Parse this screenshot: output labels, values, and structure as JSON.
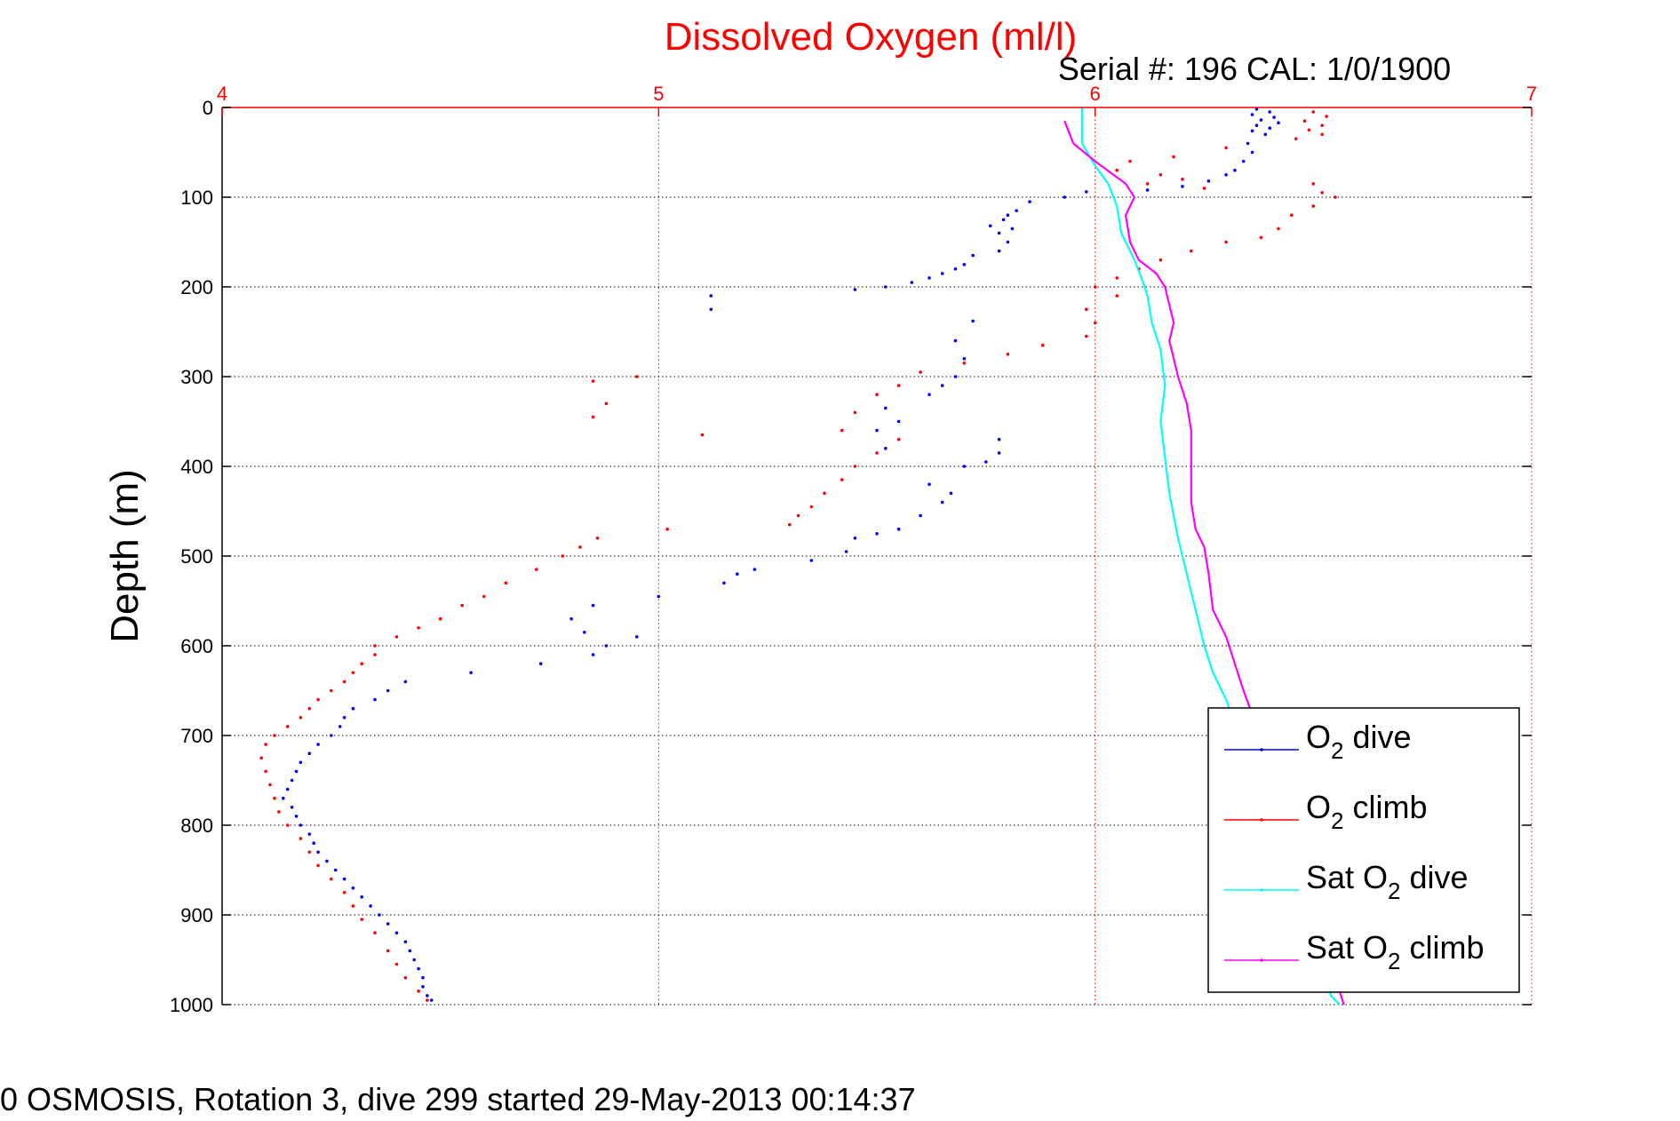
{
  "chart_data": {
    "type": "scatter",
    "title": "Dissolved Oxygen (ml/l)",
    "subtitle": "Serial #: 196  CAL: 1/0/1900",
    "xlabel": "",
    "ylabel": "Depth (m)",
    "xlim": [
      4,
      7
    ],
    "ylim": [
      0,
      1000
    ],
    "y_reversed": true,
    "x_ticks": [
      "4",
      "5",
      "6",
      "7"
    ],
    "y_ticks": [
      "0",
      "100",
      "200",
      "300",
      "400",
      "500",
      "600",
      "700",
      "800",
      "900",
      "1000"
    ],
    "x_tick_values": [
      4,
      5,
      6,
      7
    ],
    "y_tick_values": [
      0,
      100,
      200,
      300,
      400,
      500,
      600,
      700,
      800,
      900,
      1000
    ],
    "grid": true,
    "legend_position": "lower-right",
    "footer": "0 OSMOSIS, Rotation 3, dive 299 started 29-May-2013 00:14:37",
    "colors": {
      "title": "#ff0000",
      "x_axis": "#ff0000",
      "y_axis": "#000000",
      "grid": "#000000"
    },
    "series": [
      {
        "id": "o2_dive",
        "legend_prefix": "O",
        "legend_sub": "2",
        "legend_suffix": " dive",
        "color": "#0000ff",
        "style": "dots",
        "points": [
          [
            6.37,
            2
          ],
          [
            6.4,
            5
          ],
          [
            6.36,
            8
          ],
          [
            6.41,
            11
          ],
          [
            6.38,
            14
          ],
          [
            6.42,
            17
          ],
          [
            6.37,
            20
          ],
          [
            6.4,
            23
          ],
          [
            6.36,
            26
          ],
          [
            6.39,
            30
          ],
          [
            6.35,
            40
          ],
          [
            6.36,
            50
          ],
          [
            6.34,
            60
          ],
          [
            6.32,
            70
          ],
          [
            6.3,
            75
          ],
          [
            6.26,
            82
          ],
          [
            6.2,
            88
          ],
          [
            6.12,
            92
          ],
          [
            5.98,
            94
          ],
          [
            5.93,
            100
          ],
          [
            5.85,
            105
          ],
          [
            5.82,
            115
          ],
          [
            5.8,
            120
          ],
          [
            5.79,
            125
          ],
          [
            5.76,
            132
          ],
          [
            5.81,
            135
          ],
          [
            5.78,
            140
          ],
          [
            5.8,
            150
          ],
          [
            5.78,
            160
          ],
          [
            5.72,
            165
          ],
          [
            5.7,
            175
          ],
          [
            5.68,
            180
          ],
          [
            5.65,
            185
          ],
          [
            5.62,
            190
          ],
          [
            5.58,
            195
          ],
          [
            5.52,
            200
          ],
          [
            5.45,
            203
          ],
          [
            5.12,
            210
          ],
          [
            5.12,
            225
          ],
          [
            5.72,
            238
          ],
          [
            5.68,
            260
          ],
          [
            5.7,
            280
          ],
          [
            5.68,
            300
          ],
          [
            5.65,
            310
          ],
          [
            5.62,
            320
          ],
          [
            5.52,
            335
          ],
          [
            5.55,
            350
          ],
          [
            5.5,
            360
          ],
          [
            5.52,
            380
          ],
          [
            5.78,
            370
          ],
          [
            5.78,
            385
          ],
          [
            5.75,
            395
          ],
          [
            5.7,
            400
          ],
          [
            5.62,
            420
          ],
          [
            5.67,
            430
          ],
          [
            5.65,
            440
          ],
          [
            5.6,
            455
          ],
          [
            5.55,
            470
          ],
          [
            5.5,
            475
          ],
          [
            5.45,
            480
          ],
          [
            5.43,
            495
          ],
          [
            5.35,
            505
          ],
          [
            5.22,
            515
          ],
          [
            5.18,
            520
          ],
          [
            5.15,
            530
          ],
          [
            5.0,
            545
          ],
          [
            4.85,
            555
          ],
          [
            4.8,
            570
          ],
          [
            4.83,
            585
          ],
          [
            4.95,
            590
          ],
          [
            4.88,
            600
          ],
          [
            4.85,
            610
          ],
          [
            4.73,
            620
          ],
          [
            4.57,
            630
          ],
          [
            4.42,
            640
          ],
          [
            4.38,
            650
          ],
          [
            4.35,
            660
          ],
          [
            4.3,
            670
          ],
          [
            4.28,
            680
          ],
          [
            4.27,
            690
          ],
          [
            4.25,
            700
          ],
          [
            4.22,
            710
          ],
          [
            4.2,
            720
          ],
          [
            4.18,
            730
          ],
          [
            4.17,
            740
          ],
          [
            4.16,
            750
          ],
          [
            4.15,
            760
          ],
          [
            4.14,
            770
          ],
          [
            4.16,
            780
          ],
          [
            4.17,
            790
          ],
          [
            4.18,
            800
          ],
          [
            4.2,
            810
          ],
          [
            4.21,
            820
          ],
          [
            4.22,
            830
          ],
          [
            4.24,
            840
          ],
          [
            4.26,
            850
          ],
          [
            4.28,
            860
          ],
          [
            4.3,
            870
          ],
          [
            4.32,
            880
          ],
          [
            4.34,
            890
          ],
          [
            4.36,
            900
          ],
          [
            4.38,
            910
          ],
          [
            4.4,
            920
          ],
          [
            4.42,
            930
          ],
          [
            4.43,
            940
          ],
          [
            4.44,
            950
          ],
          [
            4.45,
            960
          ],
          [
            4.46,
            970
          ],
          [
            4.46,
            980
          ],
          [
            4.47,
            990
          ],
          [
            4.48,
            995
          ]
        ]
      },
      {
        "id": "o2_climb",
        "legend_prefix": "O",
        "legend_sub": "2",
        "legend_suffix": " climb",
        "color": "#ff0000",
        "style": "dots",
        "points": [
          [
            6.5,
            5
          ],
          [
            6.53,
            10
          ],
          [
            6.48,
            15
          ],
          [
            6.52,
            20
          ],
          [
            6.49,
            25
          ],
          [
            6.52,
            30
          ],
          [
            6.46,
            35
          ],
          [
            6.3,
            45
          ],
          [
            6.18,
            55
          ],
          [
            6.08,
            60
          ],
          [
            6.05,
            70
          ],
          [
            6.15,
            75
          ],
          [
            6.2,
            80
          ],
          [
            6.12,
            85
          ],
          [
            6.25,
            90
          ],
          [
            6.5,
            85
          ],
          [
            6.52,
            95
          ],
          [
            6.55,
            100
          ],
          [
            6.5,
            110
          ],
          [
            6.45,
            120
          ],
          [
            6.42,
            135
          ],
          [
            6.38,
            145
          ],
          [
            6.3,
            150
          ],
          [
            6.22,
            160
          ],
          [
            6.15,
            170
          ],
          [
            6.1,
            180
          ],
          [
            6.05,
            190
          ],
          [
            6.0,
            200
          ],
          [
            6.05,
            210
          ],
          [
            5.98,
            225
          ],
          [
            6.0,
            240
          ],
          [
            5.98,
            255
          ],
          [
            5.88,
            265
          ],
          [
            5.8,
            275
          ],
          [
            5.7,
            285
          ],
          [
            5.6,
            295
          ],
          [
            5.55,
            310
          ],
          [
            5.5,
            320
          ],
          [
            5.45,
            340
          ],
          [
            5.42,
            360
          ],
          [
            5.55,
            370
          ],
          [
            5.5,
            385
          ],
          [
            5.45,
            400
          ],
          [
            5.42,
            415
          ],
          [
            5.38,
            430
          ],
          [
            5.35,
            445
          ],
          [
            5.32,
            455
          ],
          [
            5.3,
            465
          ],
          [
            5.02,
            470
          ],
          [
            4.86,
            480
          ],
          [
            4.82,
            490
          ],
          [
            4.78,
            500
          ],
          [
            4.72,
            515
          ],
          [
            4.65,
            530
          ],
          [
            4.6,
            545
          ],
          [
            4.55,
            555
          ],
          [
            4.5,
            570
          ],
          [
            4.45,
            580
          ],
          [
            4.4,
            590
          ],
          [
            4.35,
            600
          ],
          [
            4.35,
            610
          ],
          [
            4.32,
            620
          ],
          [
            4.3,
            630
          ],
          [
            4.28,
            640
          ],
          [
            4.25,
            650
          ],
          [
            4.22,
            660
          ],
          [
            4.2,
            670
          ],
          [
            4.18,
            680
          ],
          [
            4.15,
            690
          ],
          [
            4.12,
            700
          ],
          [
            4.1,
            710
          ],
          [
            4.09,
            725
          ],
          [
            4.1,
            740
          ],
          [
            4.11,
            755
          ],
          [
            4.12,
            770
          ],
          [
            4.13,
            785
          ],
          [
            4.15,
            800
          ],
          [
            4.18,
            815
          ],
          [
            4.2,
            830
          ],
          [
            4.22,
            845
          ],
          [
            4.25,
            860
          ],
          [
            4.28,
            875
          ],
          [
            4.3,
            890
          ],
          [
            4.32,
            905
          ],
          [
            4.35,
            920
          ],
          [
            4.38,
            940
          ],
          [
            4.4,
            955
          ],
          [
            4.42,
            970
          ],
          [
            4.45,
            985
          ],
          [
            4.47,
            995
          ],
          [
            5.1,
            365
          ],
          [
            4.85,
            305
          ],
          [
            4.95,
            300
          ],
          [
            4.88,
            330
          ],
          [
            4.85,
            345
          ]
        ]
      },
      {
        "id": "sat_o2_dive",
        "legend_prefix": "Sat O",
        "legend_sub": "2",
        "legend_suffix": " dive",
        "color": "#00ffff",
        "style": "line",
        "points": [
          [
            5.97,
            0
          ],
          [
            5.97,
            40
          ],
          [
            6.0,
            65
          ],
          [
            6.03,
            85
          ],
          [
            6.05,
            110
          ],
          [
            6.06,
            140
          ],
          [
            6.09,
            170
          ],
          [
            6.11,
            195
          ],
          [
            6.12,
            210
          ],
          [
            6.13,
            240
          ],
          [
            6.15,
            270
          ],
          [
            6.16,
            310
          ],
          [
            6.15,
            350
          ],
          [
            6.16,
            390
          ],
          [
            6.17,
            430
          ],
          [
            6.19,
            480
          ],
          [
            6.21,
            520
          ],
          [
            6.23,
            560
          ],
          [
            6.25,
            600
          ],
          [
            6.27,
            630
          ],
          [
            6.3,
            660
          ],
          [
            6.33,
            700
          ],
          [
            6.36,
            750
          ],
          [
            6.4,
            800
          ],
          [
            6.44,
            850
          ],
          [
            6.48,
            900
          ],
          [
            6.52,
            950
          ],
          [
            6.54,
            990
          ],
          [
            6.56,
            1000
          ]
        ]
      },
      {
        "id": "sat_o2_climb",
        "legend_prefix": "Sat O",
        "legend_sub": "2",
        "legend_suffix": " climb",
        "color": "#ff00ff",
        "style": "line",
        "points": [
          [
            5.93,
            15
          ],
          [
            5.95,
            40
          ],
          [
            6.0,
            60
          ],
          [
            6.07,
            85
          ],
          [
            6.09,
            100
          ],
          [
            6.07,
            120
          ],
          [
            6.08,
            150
          ],
          [
            6.1,
            170
          ],
          [
            6.14,
            185
          ],
          [
            6.16,
            200
          ],
          [
            6.17,
            220
          ],
          [
            6.18,
            240
          ],
          [
            6.17,
            260
          ],
          [
            6.18,
            280
          ],
          [
            6.19,
            300
          ],
          [
            6.21,
            330
          ],
          [
            6.22,
            360
          ],
          [
            6.22,
            400
          ],
          [
            6.22,
            440
          ],
          [
            6.23,
            470
          ],
          [
            6.25,
            490
          ],
          [
            6.26,
            520
          ],
          [
            6.27,
            560
          ],
          [
            6.3,
            590
          ],
          [
            6.32,
            620
          ],
          [
            6.34,
            650
          ],
          [
            6.37,
            690
          ],
          [
            6.4,
            740
          ],
          [
            6.44,
            800
          ],
          [
            6.48,
            860
          ],
          [
            6.52,
            920
          ],
          [
            6.55,
            970
          ],
          [
            6.57,
            1000
          ]
        ]
      }
    ]
  }
}
